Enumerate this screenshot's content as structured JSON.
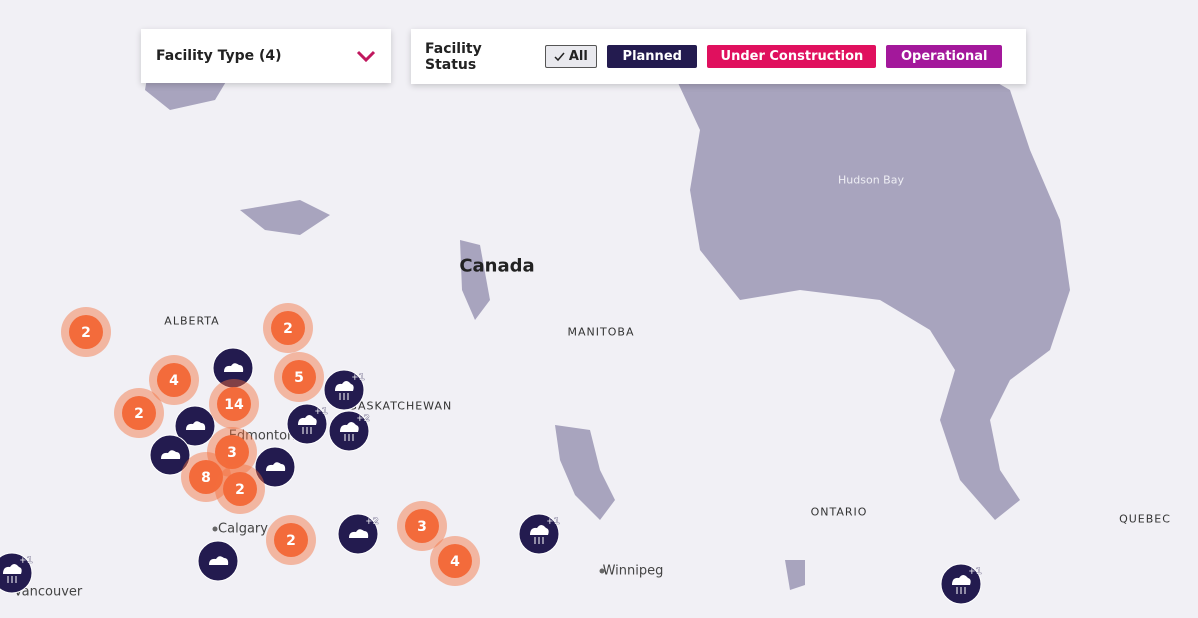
{
  "filters": {
    "facility_type": "Facility Type (4)",
    "facility_status": "Facility Status",
    "status_buttons": [
      "All",
      "Planned",
      "Under Construction",
      "Operational"
    ]
  },
  "map_labels": [
    "Hudson Bay",
    "Canada",
    "ALBERTA",
    "MANITOBA",
    "SASKATCHEWAN",
    "Edmonton",
    "Calgary",
    "Winnipeg",
    "ONTARIO",
    "QUEBEC",
    "Vancouver"
  ],
  "clusters": [
    "2",
    "4",
    "2",
    "14",
    "2",
    "5",
    "3",
    "8",
    "2",
    "2",
    "3",
    "4"
  ],
  "badges": [
    "+2",
    "+1",
    "+1",
    "+2",
    "+1",
    "+1",
    "+1"
  ]
}
